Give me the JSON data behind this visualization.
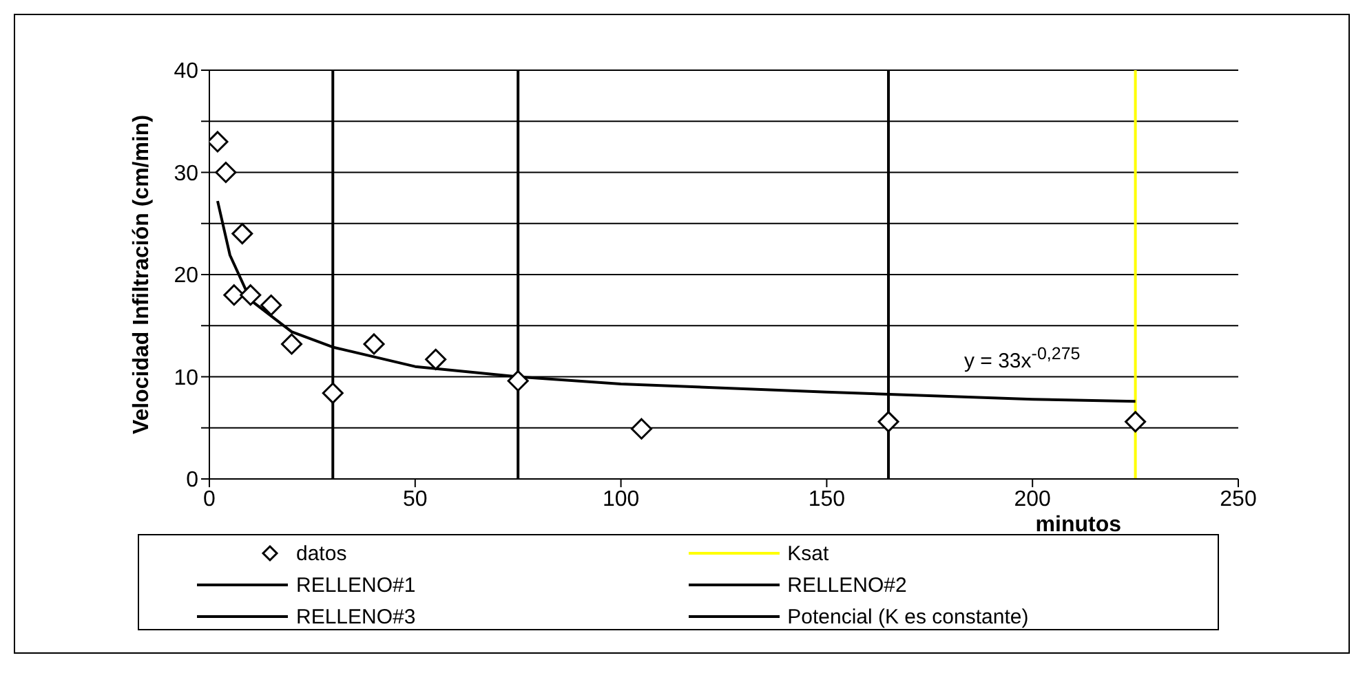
{
  "chart_data": {
    "type": "scatter",
    "xlabel": "minutos",
    "ylabel": "Velocidad  Infiltración  (cm/min)",
    "xlim": [
      0,
      250
    ],
    "xticks": [
      0,
      50,
      100,
      150,
      200,
      250
    ],
    "ylim": [
      0,
      40
    ],
    "yticks": [
      0,
      {
        "value": 5,
        "label": null
      },
      10,
      {
        "value": 15,
        "label": null
      },
      20,
      {
        "value": 25,
        "label": null
      },
      30,
      {
        "value": 35,
        "label": null
      },
      40
    ],
    "grid": "y",
    "legend": "bottom",
    "annotations": [
      "y = 33x$^{-0,275}$"
    ],
    "series": [
      {
        "name": "datos",
        "marker": "diamond",
        "color": "#000000",
        "x": [
          2,
          4,
          6,
          8,
          10,
          15,
          20,
          30,
          40,
          55,
          75,
          105,
          165,
          225
        ],
        "values": [
          33,
          30,
          18,
          24,
          18,
          17,
          13.2,
          8.4,
          13.2,
          11.7,
          9.6,
          4.9,
          5.6,
          5.6
        ]
      },
      {
        "name": "Ksat",
        "type": "line",
        "color": "#ffff00",
        "x": [
          225,
          225
        ],
        "values": [
          0,
          40
        ]
      },
      {
        "name": "RELLENO#1",
        "type": "line",
        "color": "#000000",
        "x": [
          30,
          30
        ],
        "values": [
          0,
          40
        ]
      },
      {
        "name": "RELLENO#2",
        "type": "line",
        "color": "#000000",
        "x": [
          75,
          75
        ],
        "values": [
          0,
          40
        ]
      },
      {
        "name": "RELLENO#3",
        "type": "line",
        "color": "#000000",
        "x": [
          165,
          165
        ],
        "values": [
          0,
          40
        ]
      },
      {
        "name": "Potencial (K es constante)",
        "type": "line",
        "color": "#000000",
        "x": [
          2,
          5,
          10,
          20,
          30,
          50,
          75,
          100,
          150,
          200,
          225
        ],
        "values": [
          27.2,
          21.9,
          17.5,
          14.4,
          12.9,
          11.0,
          10.0,
          9.3,
          8.5,
          7.8,
          7.6
        ]
      }
    ]
  }
}
